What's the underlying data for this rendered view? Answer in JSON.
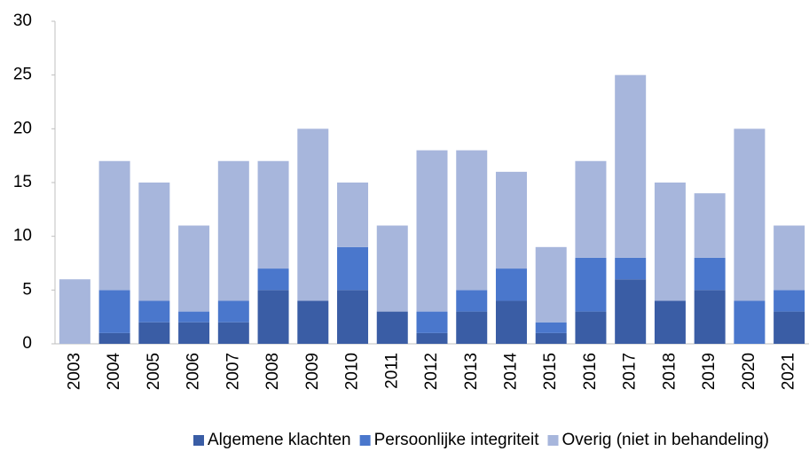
{
  "chart_data": {
    "type": "stacked_bar",
    "categories": [
      "2003",
      "2004",
      "2005",
      "2006",
      "2007",
      "2008",
      "2009",
      "2010",
      "2011",
      "2012",
      "2013",
      "2014",
      "2015",
      "2016",
      "2017",
      "2018",
      "2019",
      "2020",
      "2021"
    ],
    "series": [
      {
        "name": "Algemene klachten",
        "color": "#3a5da5",
        "values": [
          0,
          1,
          2,
          2,
          2,
          5,
          4,
          5,
          3,
          1,
          3,
          4,
          1,
          3,
          6,
          4,
          5,
          0,
          3
        ]
      },
      {
        "name": "Persoonlijke integriteit",
        "color": "#4a77cc",
        "values": [
          0,
          4,
          2,
          1,
          2,
          2,
          0,
          4,
          0,
          2,
          2,
          3,
          1,
          5,
          2,
          0,
          3,
          4,
          2
        ]
      },
      {
        "name": "Overig (niet in behandeling)",
        "color": "#a7b6dc",
        "values": [
          6,
          12,
          11,
          8,
          13,
          10,
          16,
          6,
          8,
          15,
          13,
          9,
          7,
          9,
          17,
          11,
          6,
          16,
          6
        ]
      }
    ],
    "ylim": [
      0,
      30
    ],
    "yticks": [
      0,
      5,
      10,
      15,
      20,
      25,
      30
    ],
    "grid": false,
    "legend": "bottom"
  }
}
